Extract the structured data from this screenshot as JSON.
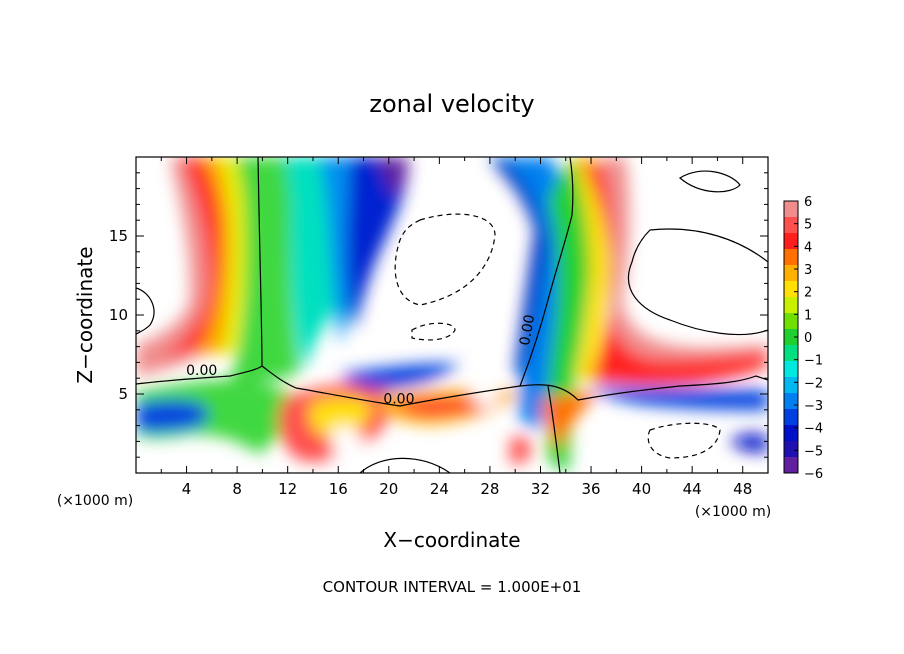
{
  "chart_data": {
    "type": "heatmap",
    "title": "zonal velocity",
    "xlabel": "X−coordinate",
    "ylabel": "Z−coordinate",
    "x_unit_note": "(×1000 m)",
    "y_unit_note": "(×1000 m)",
    "footer": "CONTOUR INTERVAL = 1.000E+01",
    "xlim": [
      0,
      50
    ],
    "ylim": [
      0,
      20
    ],
    "x_ticks": [
      "4",
      "8",
      "12",
      "16",
      "20",
      "24",
      "28",
      "32",
      "36",
      "40",
      "44",
      "48"
    ],
    "y_ticks": [
      "5",
      "10",
      "15"
    ],
    "colorbar": {
      "range": [
        -6,
        6
      ],
      "ticks": [
        "6",
        "5",
        "4",
        "3",
        "2",
        "1",
        "0",
        "−1",
        "−2",
        "−3",
        "−4",
        "−5",
        "−6"
      ],
      "colors": [
        "#f08c8c",
        "#ff5050",
        "#ff1e1e",
        "#ff7000",
        "#ffb000",
        "#ffe000",
        "#c8f000",
        "#70e000",
        "#20d030",
        "#00e080",
        "#00e8e0",
        "#00b8f0",
        "#0080f0",
        "#0040e0",
        "#0010c8",
        "#2010b0",
        "#6020a0"
      ]
    },
    "contour_labels": [
      {
        "text": "0.00",
        "x": 5.2,
        "z": 6.2
      },
      {
        "text": "0.00",
        "x": 20.8,
        "z": 4.4
      },
      {
        "text": "0.00",
        "x": 31.3,
        "z": 9.0
      }
    ]
  }
}
